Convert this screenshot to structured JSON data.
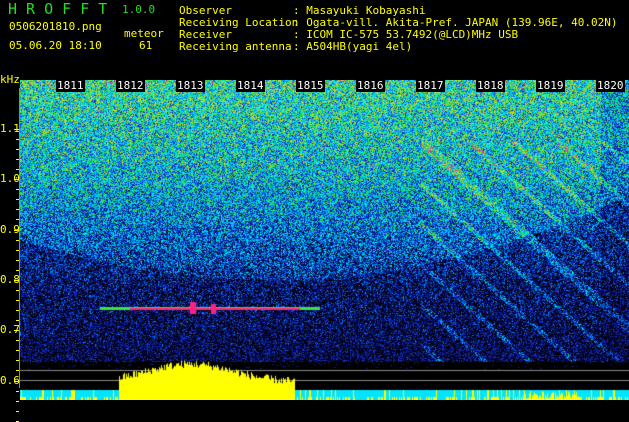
{
  "app": {
    "title": "H R O F F T",
    "version": "1.0.0"
  },
  "file": {
    "name": "0506201810.png",
    "datetime": "05.06.20 18:10"
  },
  "meteor": {
    "label": "meteor",
    "count": "61"
  },
  "info": [
    {
      "label": "Observer",
      "value": ": Masayuki Kobayashi"
    },
    {
      "label": "Receiving Location",
      "value": ": Ogata-vill. Akita-Pref. JAPAN (139.96E, 40.02N)"
    },
    {
      "label": "Receiver",
      "value": ": ICOM IC-575 53.7492(@LCD)MHz USB"
    },
    {
      "label": "Receiving antenna",
      "value": ": A504HB(yagi 4el)"
    }
  ],
  "spectrogram": {
    "y_unit": "kHz",
    "y_ticks": [
      "1.1",
      "1.0",
      "0.9",
      "0.8",
      "0.7",
      "0.6"
    ],
    "time_ticks": [
      "1811",
      "1812",
      "1813",
      "1814",
      "1815",
      "1816",
      "1817",
      "1818",
      "1819",
      "1820"
    ],
    "colors": {
      "background": "#000000",
      "low": "#0a1a6e",
      "mid": "#00c8ff",
      "high": "#ff2080",
      "bars": "#ffff00",
      "baseline": "#00e5ff"
    }
  }
}
